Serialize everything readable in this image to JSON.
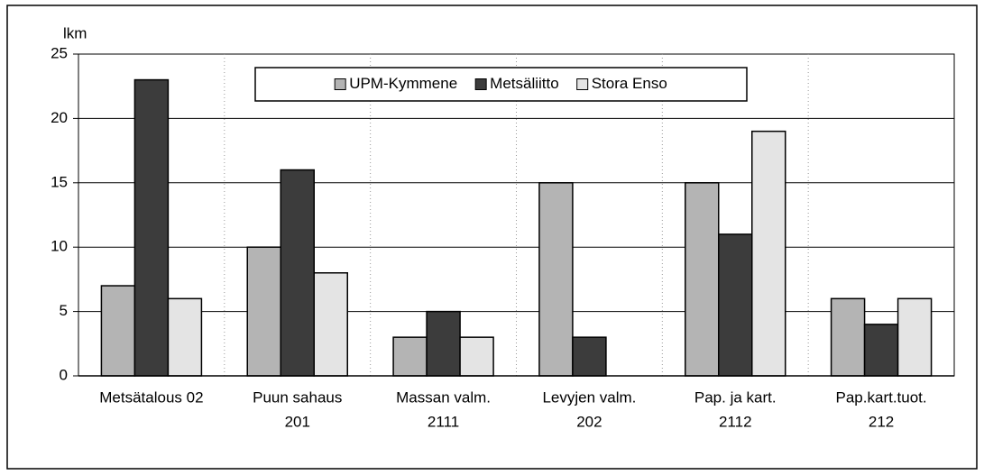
{
  "chart_data": {
    "type": "bar",
    "y_label": "lkm",
    "categories": [
      [
        "Metsätalous 02"
      ],
      [
        "Puun sahaus",
        "201"
      ],
      [
        "Massan valm.",
        "2111"
      ],
      [
        "Levyjen valm.",
        "202"
      ],
      [
        "Pap. ja kart.",
        "2112"
      ],
      [
        "Pap.kart.tuot.",
        "212"
      ]
    ],
    "series": [
      {
        "name": "UPM-Kymmene",
        "color": "#b4b4b4",
        "values": [
          7,
          10,
          3,
          15,
          15,
          6
        ]
      },
      {
        "name": "Metsäliitto",
        "color": "#3c3c3c",
        "values": [
          23,
          16,
          5,
          3,
          11,
          4
        ]
      },
      {
        "name": "Stora Enso",
        "color": "#e4e4e4",
        "values": [
          6,
          8,
          3,
          0,
          19,
          6
        ]
      }
    ],
    "ylim": [
      0,
      25
    ],
    "yticks": [
      0,
      5,
      10,
      15,
      20,
      25
    ],
    "grid": true,
    "legend": "top"
  }
}
